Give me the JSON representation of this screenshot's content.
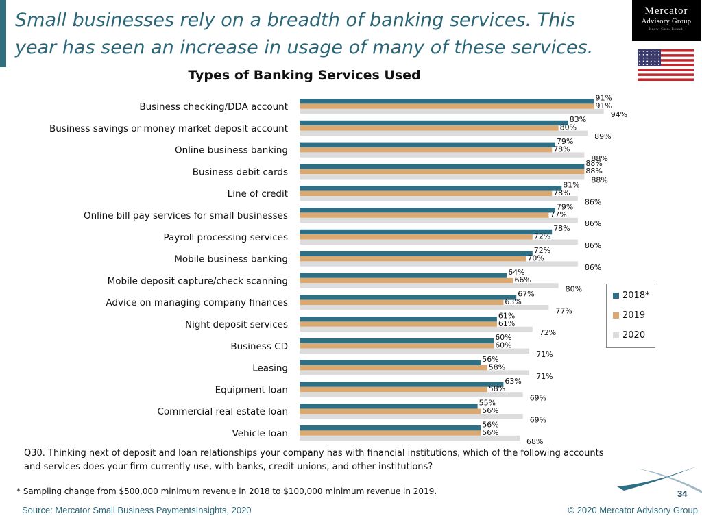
{
  "headline": "Small businesses rely on a breadth of banking services. This year has seen an increase in usage of many of these services.",
  "logo": {
    "line1": "Mercator",
    "line2": "Advisory Group",
    "tagline": "Know. Gain. Bound."
  },
  "flag_icon": "us-flag-icon",
  "colors": {
    "accent": "#2f6f7e",
    "headline": "#2a6677",
    "series_2018": "#2f6f86",
    "series_2019": "#dba870",
    "series_2020": "#dcdcdc",
    "source": "#2a6677"
  },
  "chart_data": {
    "type": "bar",
    "orientation": "horizontal",
    "title": "Types of Banking Services Used",
    "categories": [
      "Business checking/DDA account",
      "Business savings or money market deposit account",
      "Online business banking",
      "Business debit cards",
      "Line of credit",
      "Online bill pay services for small businesses",
      "Payroll processing services",
      "Mobile business banking",
      "Mobile deposit capture/check scanning",
      "Advice on managing company finances",
      "Night deposit services",
      "Business CD",
      "Leasing",
      "Equipment loan",
      "Commercial real estate loan",
      "Vehicle loan"
    ],
    "series": [
      {
        "name": "2018*",
        "values": [
          91,
          83,
          79,
          88,
          81,
          79,
          78,
          72,
          64,
          67,
          61,
          60,
          56,
          63,
          55,
          56
        ]
      },
      {
        "name": "2019",
        "values": [
          91,
          80,
          78,
          88,
          78,
          77,
          72,
          70,
          66,
          63,
          61,
          60,
          58,
          58,
          56,
          56
        ]
      },
      {
        "name": "2020",
        "values": [
          94,
          89,
          88,
          88,
          86,
          86,
          86,
          86,
          80,
          77,
          72,
          71,
          71,
          69,
          69,
          68
        ]
      }
    ],
    "value_suffix": "%",
    "xlim": [
      0,
      100
    ],
    "grid": false,
    "legend_position": "right"
  },
  "question": "Q30. Thinking next of deposit and loan relationships your company has with financial institutions, which of the following accounts and services does your firm currently use, with banks, credit unions, and other institutions?",
  "footnote": "* Sampling change from $500,000 minimum revenue in 2018 to $100,000 minimum revenue in 2019.",
  "source": "Source: Mercator Small Business PaymentsInsights, 2020",
  "copyright": "© 2020 Mercator Advisory Group",
  "page_number": "34"
}
